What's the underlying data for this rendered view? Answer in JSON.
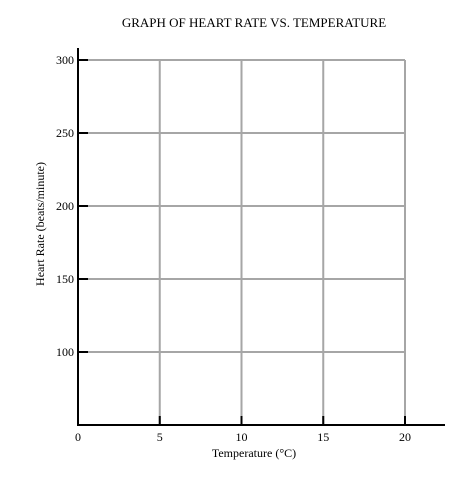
{
  "chart_data": {
    "type": "line",
    "title": "GRAPH OF HEART RATE VS. TEMPERATURE",
    "xlabel": "Temperature (°C)",
    "ylabel": "Heart Rate (beats/minute)",
    "xlim": [
      0,
      22
    ],
    "ylim": [
      50,
      305
    ],
    "x_ticks": [
      0,
      5,
      10,
      15,
      20
    ],
    "x_tick_labels": [
      "0",
      "5",
      "10",
      "15",
      "20"
    ],
    "y_ticks": [
      100,
      150,
      200,
      250,
      300
    ],
    "y_tick_labels": [
      "100",
      "150",
      "200",
      "250",
      "300"
    ],
    "grid": true,
    "series": [],
    "colors": {
      "axis": "#000000",
      "grid": "#a6a6a6",
      "text": "#000000"
    }
  }
}
